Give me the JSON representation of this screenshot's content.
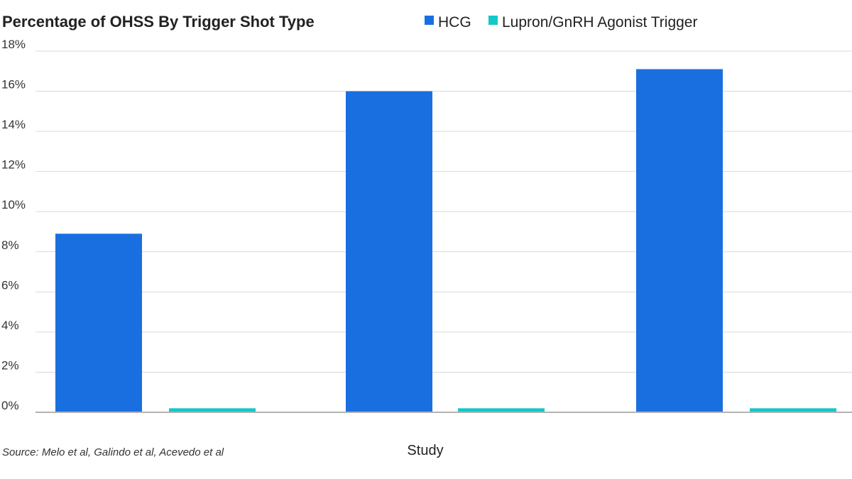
{
  "chart_data": {
    "type": "bar",
    "title": "Percentage of OHSS By Trigger Shot Type",
    "xlabel": "Study",
    "ylabel": "",
    "ylim": [
      0,
      18
    ],
    "yticks": [
      0,
      2,
      4,
      6,
      8,
      10,
      12,
      14,
      16,
      18
    ],
    "ytick_format": "{v}%",
    "categories": [
      "",
      "",
      ""
    ],
    "series": [
      {
        "name": "HCG",
        "color": "#1a6fe0",
        "values": [
          8.9,
          16.0,
          17.1
        ]
      },
      {
        "name": "Lupron/GnRH Agonist Trigger",
        "color": "#14c8c8",
        "values": [
          0.2,
          0.2,
          0.2
        ]
      }
    ],
    "legend_position": "top",
    "grid": true,
    "source": "Source: Melo et al, Galindo et al, Acevedo et al"
  }
}
